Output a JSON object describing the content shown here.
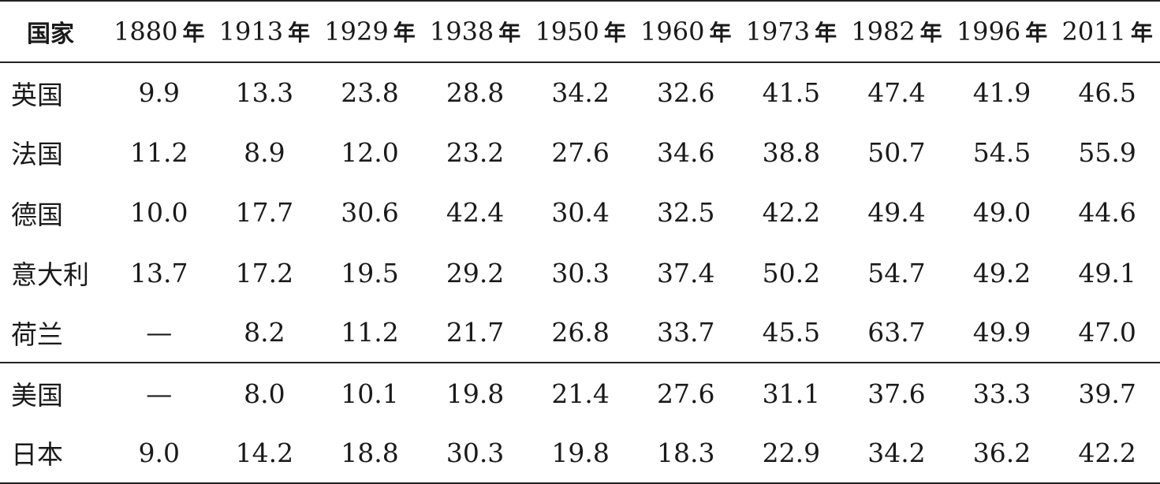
{
  "table": {
    "country_header": "国家",
    "year_suffix": "年",
    "years": [
      "1880",
      "1913",
      "1929",
      "1938",
      "1950",
      "1960",
      "1973",
      "1982",
      "1996",
      "2011"
    ],
    "rows": [
      {
        "country": "英国",
        "values": [
          "9.9",
          "13.3",
          "23.8",
          "28.8",
          "34.2",
          "32.6",
          "41.5",
          "47.4",
          "41.9",
          "46.5"
        ]
      },
      {
        "country": "法国",
        "values": [
          "11.2",
          "8.9",
          "12.0",
          "23.2",
          "27.6",
          "34.6",
          "38.8",
          "50.7",
          "54.5",
          "55.9"
        ]
      },
      {
        "country": "德国",
        "values": [
          "10.0",
          "17.7",
          "30.6",
          "42.4",
          "30.4",
          "32.5",
          "42.2",
          "49.4",
          "49.0",
          "44.6"
        ]
      },
      {
        "country": "意大利",
        "values": [
          "13.7",
          "17.2",
          "19.5",
          "29.2",
          "30.3",
          "37.4",
          "50.2",
          "54.7",
          "49.2",
          "49.1"
        ]
      },
      {
        "country": "荷兰",
        "values": [
          "—",
          "8.2",
          "11.2",
          "21.7",
          "26.8",
          "33.7",
          "45.5",
          "63.7",
          "49.9",
          "47.0"
        ]
      },
      {
        "country": "美国",
        "values": [
          "—",
          "8.0",
          "10.1",
          "19.8",
          "21.4",
          "27.6",
          "31.1",
          "37.6",
          "33.3",
          "39.7"
        ]
      },
      {
        "country": "日本",
        "values": [
          "9.0",
          "14.2",
          "18.8",
          "30.3",
          "19.8",
          "18.3",
          "22.9",
          "34.2",
          "36.2",
          "42.2"
        ]
      }
    ]
  }
}
